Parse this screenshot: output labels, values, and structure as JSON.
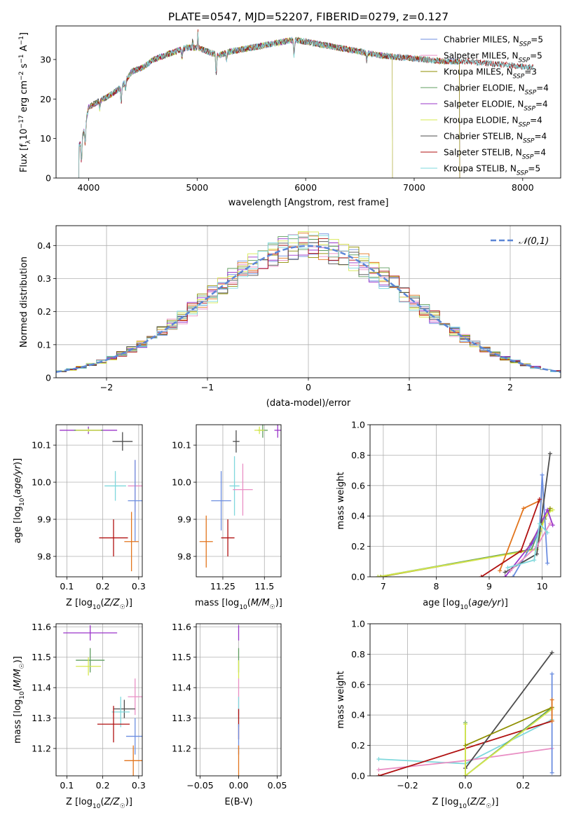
{
  "figure": {
    "title": "PLATE=0547, MJD=52207, FIBERID=0279, z=0.127"
  },
  "colors": {
    "series": [
      "#6c8ee0",
      "#e98fc4",
      "#8f8f00",
      "#5f9d5f",
      "#9a35c9",
      "#d6e84e",
      "#4d4d4d",
      "#b01010",
      "#7fd8dc"
    ],
    "orange": "#e2751d",
    "normal_curve": "#5c86d6",
    "grid": "#b0b0b0"
  },
  "chart_data": [
    {
      "id": "spectrum",
      "type": "line",
      "xlabel": "wavelength [Angstrom, rest frame]",
      "ylabel": "Flux [f_λ 10^-17 erg cm^-2 s^-1 A^-1]",
      "xlim": [
        3700,
        8350
      ],
      "ylim": [
        0,
        38.5
      ],
      "xticks": [
        4000,
        5000,
        6000,
        7000,
        8000
      ],
      "yticks": [
        0,
        10,
        20,
        30
      ],
      "grid": false,
      "legend_position": "right",
      "series": [
        {
          "name": "Chabrier MILES, N_SSP=5",
          "x_range": [
            3910,
            7420
          ]
        },
        {
          "name": "Salpeter MILES, N_SSP=5",
          "x_range": [
            3910,
            7420
          ]
        },
        {
          "name": "Kroupa MILES, N_SSP=3",
          "x_range": [
            3910,
            7420
          ]
        },
        {
          "name": "Chabrier ELODIE, N_SSP=4",
          "x_range": [
            3910,
            6800
          ]
        },
        {
          "name": "Salpeter ELODIE, N_SSP=4",
          "x_range": [
            3910,
            6800
          ]
        },
        {
          "name": "Kroupa ELODIE, N_SSP=4",
          "x_range": [
            3910,
            6800
          ]
        },
        {
          "name": "Chabrier STELIB, N_SSP=4",
          "x_range": [
            3910,
            8100
          ]
        },
        {
          "name": "Salpeter STELIB, N_SSP=4",
          "x_range": [
            3910,
            8100
          ]
        },
        {
          "name": "Kroupa STELIB, N_SSP=5",
          "x_range": [
            3910,
            8100
          ]
        }
      ],
      "continuum": {
        "x": [
          3910,
          3960,
          4000,
          4100,
          4200,
          4300,
          4400,
          4500,
          4600,
          4700,
          4800,
          4900,
          5000,
          5100,
          5200,
          5300,
          5500,
          5700,
          5900,
          6100,
          6300,
          6500,
          6700,
          6900,
          7100,
          7300,
          7500,
          7700,
          7900,
          8100
        ],
        "y": [
          8,
          12,
          18,
          19.5,
          21,
          23,
          27,
          28,
          30,
          31,
          32,
          33,
          33,
          32,
          31,
          32,
          33,
          34,
          35,
          34,
          33,
          32,
          31,
          30.5,
          30,
          29.5,
          29.5,
          29,
          28.5,
          28
        ]
      },
      "absorption_lines": [
        {
          "x": 3934,
          "depth": 6
        },
        {
          "x": 3969,
          "depth": 5
        },
        {
          "x": 4102,
          "depth": 2
        },
        {
          "x": 4300,
          "depth": 4
        },
        {
          "x": 4340,
          "depth": 2
        },
        {
          "x": 4861,
          "depth": 2
        },
        {
          "x": 5175,
          "depth": 5
        },
        {
          "x": 5270,
          "depth": 2
        },
        {
          "x": 5893,
          "depth": 4
        },
        {
          "x": 6563,
          "depth": 2
        }
      ],
      "emission_lines": [
        {
          "x": 4959,
          "height": 2
        },
        {
          "x": 5007,
          "height": 4
        }
      ]
    },
    {
      "id": "residuals",
      "type": "bar",
      "xlabel": "(data-model)/error",
      "ylabel": "Normed distribution",
      "xlim": [
        -2.5,
        2.5
      ],
      "ylim": [
        0,
        0.46
      ],
      "xticks": [
        -2,
        -1,
        0,
        1,
        2
      ],
      "yticks": [
        0.0,
        0.1,
        0.2,
        0.3,
        0.4
      ],
      "grid": true,
      "legend_position": "top-right",
      "legend": "𝒩(0,1)",
      "bin_width": 0.1,
      "normal_curve": {
        "mean": 0,
        "sigma": 1
      }
    },
    {
      "id": "age_vs_Z",
      "type": "scatter",
      "xlabel": "Z [log10(Z/Z☉)]",
      "ylabel": "age [log10(age/yr)]",
      "xlim": [
        0.07,
        0.31
      ],
      "ylim": [
        9.745,
        10.155
      ],
      "xticks": [
        0.1,
        0.2,
        0.3
      ],
      "yticks": [
        9.8,
        9.9,
        10.0,
        10.1
      ],
      "grid": true,
      "points": [
        {
          "x": 0.16,
          "y": 10.14,
          "xerr": 0.08,
          "yerr": 0.01,
          "color": "#9a35c9"
        },
        {
          "x": 0.16,
          "y": 10.14,
          "xerr": 0.04,
          "yerr": 0.005,
          "color": "#5f9d5f"
        },
        {
          "x": 0.16,
          "y": 10.14,
          "xerr": 0.035,
          "yerr": 0.004,
          "color": "#d6e84e"
        },
        {
          "x": 0.255,
          "y": 10.11,
          "xerr": 0.028,
          "yerr": 0.025,
          "color": "#4d4d4d"
        },
        {
          "x": 0.235,
          "y": 9.99,
          "xerr": 0.03,
          "yerr": 0.04,
          "color": "#7fd8dc"
        },
        {
          "x": 0.29,
          "y": 9.99,
          "xerr": 0.02,
          "yerr": 0.07,
          "color": "#e98fc4"
        },
        {
          "x": 0.29,
          "y": 9.95,
          "xerr": 0.02,
          "yerr": 0.11,
          "color": "#6c8ee0"
        },
        {
          "x": 0.23,
          "y": 9.85,
          "xerr": 0.04,
          "yerr": 0.05,
          "color": "#b01010"
        },
        {
          "x": 0.28,
          "y": 9.84,
          "xerr": 0.02,
          "yerr": 0.08,
          "color": "#e2751d"
        }
      ]
    },
    {
      "id": "age_vs_mass",
      "type": "scatter",
      "xlabel": "mass [log10(M/M☉)]",
      "ylim": [
        9.745,
        10.155
      ],
      "xlim": [
        11.09,
        11.6
      ],
      "xticks": [
        11.25,
        11.5
      ],
      "yticks": [
        9.8,
        9.9,
        10.0,
        10.1
      ],
      "grid": true,
      "points": [
        {
          "x": 11.58,
          "y": 10.14,
          "xerr": 0.02,
          "yerr": 0.02,
          "color": "#9a35c9"
        },
        {
          "x": 11.49,
          "y": 10.14,
          "xerr": 0.03,
          "yerr": 0.02,
          "color": "#5f9d5f"
        },
        {
          "x": 11.47,
          "y": 10.14,
          "xerr": 0.03,
          "yerr": 0.01,
          "color": "#d6e84e"
        },
        {
          "x": 11.33,
          "y": 10.11,
          "xerr": 0.02,
          "yerr": 0.03,
          "color": "#4d4d4d"
        },
        {
          "x": 11.32,
          "y": 9.99,
          "xerr": 0.03,
          "yerr": 0.08,
          "color": "#7fd8dc"
        },
        {
          "x": 11.37,
          "y": 9.98,
          "xerr": 0.06,
          "yerr": 0.07,
          "color": "#e98fc4"
        },
        {
          "x": 11.24,
          "y": 9.95,
          "xerr": 0.06,
          "yerr": 0.08,
          "color": "#6c8ee0"
        },
        {
          "x": 11.28,
          "y": 9.85,
          "xerr": 0.04,
          "yerr": 0.05,
          "color": "#b01010"
        },
        {
          "x": 11.15,
          "y": 9.84,
          "xerr": 0.04,
          "yerr": 0.07,
          "color": "#e2751d"
        }
      ]
    },
    {
      "id": "weight_vs_age",
      "type": "line",
      "xlabel": "age [log10(age/yr)]",
      "ylabel": "mass weight",
      "xlim": [
        6.75,
        10.35
      ],
      "ylim": [
        0,
        1
      ],
      "xticks": [
        7,
        8,
        9,
        10
      ],
      "yticks": [
        0.0,
        0.2,
        0.4,
        0.6,
        0.8,
        1.0
      ],
      "grid": true,
      "series": [
        {
          "color": "#5f9d5f",
          "x": [
            6.9,
            9.8,
            10.0,
            10.15
          ],
          "y": [
            0.0,
            0.18,
            0.36,
            0.44
          ]
        },
        {
          "color": "#8f8f00",
          "x": [
            6.95,
            9.7,
            10.05,
            10.15
          ],
          "y": [
            0.0,
            0.17,
            0.38,
            0.45
          ]
        },
        {
          "color": "#d6e84e",
          "x": [
            6.9,
            9.9,
            10.05,
            10.2
          ],
          "y": [
            0.0,
            0.18,
            0.4,
            0.44
          ]
        },
        {
          "color": "#e2751d",
          "x": [
            9.2,
            9.65,
            9.95
          ],
          "y": [
            0.04,
            0.45,
            0.5
          ]
        },
        {
          "color": "#6c8ee0",
          "x": [
            9.45,
            9.95,
            10.0,
            10.1
          ],
          "y": [
            0.0,
            0.3,
            0.67,
            0.09
          ]
        },
        {
          "color": "#9a35c9",
          "x": [
            9.3,
            9.8,
            10.1,
            10.2
          ],
          "y": [
            0.0,
            0.22,
            0.44,
            0.34
          ]
        },
        {
          "color": "#4d4d4d",
          "x": [
            9.3,
            9.9,
            10.15
          ],
          "y": [
            0.03,
            0.15,
            0.81
          ]
        },
        {
          "color": "#b01010",
          "x": [
            8.85,
            9.6,
            9.95
          ],
          "y": [
            0.0,
            0.17,
            0.51
          ]
        },
        {
          "color": "#e98fc4",
          "x": [
            9.4,
            9.9,
            10.15
          ],
          "y": [
            0.04,
            0.2,
            0.35
          ]
        },
        {
          "color": "#7fd8dc",
          "x": [
            9.35,
            9.85,
            9.95,
            10.1
          ],
          "y": [
            0.06,
            0.11,
            0.35,
            0.29
          ]
        }
      ]
    },
    {
      "id": "mass_vs_Z",
      "type": "scatter",
      "xlabel": "Z [log10(Z/Z☉)]",
      "ylabel": "mass [log10(M/M☉)]",
      "xlim": [
        0.07,
        0.31
      ],
      "ylim": [
        11.11,
        11.61
      ],
      "xticks": [
        0.1,
        0.2,
        0.3
      ],
      "yticks": [
        11.2,
        11.3,
        11.4,
        11.5,
        11.6
      ],
      "grid": true,
      "points": [
        {
          "x": 0.165,
          "y": 11.58,
          "xerr": 0.075,
          "yerr": 0.025,
          "color": "#9a35c9"
        },
        {
          "x": 0.165,
          "y": 11.49,
          "xerr": 0.04,
          "yerr": 0.04,
          "color": "#5f9d5f"
        },
        {
          "x": 0.16,
          "y": 11.47,
          "xerr": 0.035,
          "yerr": 0.03,
          "color": "#d6e84e"
        },
        {
          "x": 0.29,
          "y": 11.37,
          "xerr": 0.02,
          "yerr": 0.06,
          "color": "#e98fc4"
        },
        {
          "x": 0.26,
          "y": 11.33,
          "xerr": 0.03,
          "yerr": 0.03,
          "color": "#4d4d4d"
        },
        {
          "x": 0.25,
          "y": 11.32,
          "xerr": 0.025,
          "yerr": 0.05,
          "color": "#7fd8dc"
        },
        {
          "x": 0.23,
          "y": 11.28,
          "xerr": 0.045,
          "yerr": 0.06,
          "color": "#b01010"
        },
        {
          "x": 0.29,
          "y": 11.24,
          "xerr": 0.025,
          "yerr": 0.06,
          "color": "#6c8ee0"
        },
        {
          "x": 0.285,
          "y": 11.16,
          "xerr": 0.025,
          "yerr": 0.05,
          "color": "#e2751d"
        }
      ]
    },
    {
      "id": "mass_vs_EBV",
      "type": "scatter",
      "xlabel": "E(B-V)",
      "xlim": [
        -0.055,
        0.055
      ],
      "ylim": [
        11.11,
        11.61
      ],
      "xticks": [
        -0.05,
        0.0,
        0.05
      ],
      "yticks": [
        11.2,
        11.3,
        11.4,
        11.5,
        11.6
      ],
      "grid": true,
      "points": [
        {
          "x": 0.0,
          "y": 11.58,
          "xerr": 0,
          "yerr": 0.025,
          "color": "#9a35c9"
        },
        {
          "x": 0.0,
          "y": 11.49,
          "xerr": 0,
          "yerr": 0.04,
          "color": "#5f9d5f"
        },
        {
          "x": 0.0,
          "y": 11.46,
          "xerr": 0,
          "yerr": 0.03,
          "color": "#d6e84e"
        },
        {
          "x": 0.0,
          "y": 11.37,
          "xerr": 0,
          "yerr": 0.06,
          "color": "#e98fc4"
        },
        {
          "x": 0.0,
          "y": 11.32,
          "xerr": 0,
          "yerr": 0.05,
          "color": "#7fd8dc"
        },
        {
          "x": 0.0,
          "y": 11.28,
          "xerr": 0,
          "yerr": 0.05,
          "color": "#b01010"
        },
        {
          "x": 0.0,
          "y": 11.23,
          "xerr": 0,
          "yerr": 0.05,
          "color": "#6c8ee0"
        },
        {
          "x": 0.0,
          "y": 11.16,
          "xerr": 0,
          "yerr": 0.05,
          "color": "#e2751d"
        }
      ]
    },
    {
      "id": "weight_vs_Z",
      "type": "line",
      "xlabel": "Z [log10(Z/Z☉)]",
      "ylabel": "mass weight",
      "xlim": [
        -0.33,
        0.33
      ],
      "ylim": [
        0,
        1
      ],
      "xticks": [
        -0.2,
        0.0,
        0.2
      ],
      "yticks": [
        0.0,
        0.2,
        0.4,
        0.6,
        0.8,
        1.0
      ],
      "grid": true,
      "series": [
        {
          "color": "#7fd8dc",
          "x": [
            -0.3,
            0.0,
            0.3
          ],
          "y": [
            0.11,
            0.08,
            0.37
          ]
        },
        {
          "color": "#e98fc4",
          "x": [
            -0.3,
            0.0,
            0.3
          ],
          "y": [
            0.04,
            0.1,
            0.18
          ]
        },
        {
          "color": "#b01010",
          "x": [
            -0.3,
            0.3
          ],
          "y": [
            0.0,
            0.36
          ]
        },
        {
          "color": "#4d4d4d",
          "x": [
            0.0,
            0.0,
            0.3
          ],
          "y": [
            0.0,
            0.05,
            0.81
          ]
        },
        {
          "color": "#5f9d5f",
          "x": [
            0.0,
            0.0,
            0.3
          ],
          "y": [
            0.35,
            0.0,
            0.45
          ]
        },
        {
          "color": "#d6e84e",
          "x": [
            0.0,
            0.0,
            0.3
          ],
          "y": [
            0.34,
            0.0,
            0.44
          ]
        },
        {
          "color": "#8f8f00",
          "x": [
            0.0,
            0.3
          ],
          "y": [
            0.2,
            0.45
          ]
        },
        {
          "color": "#6c8ee0",
          "x": [
            0.3,
            0.3
          ],
          "y": [
            0.67,
            0.02
          ]
        },
        {
          "color": "#e2751d",
          "x": [
            0.3,
            0.3
          ],
          "y": [
            0.5,
            0.36
          ]
        }
      ]
    }
  ]
}
